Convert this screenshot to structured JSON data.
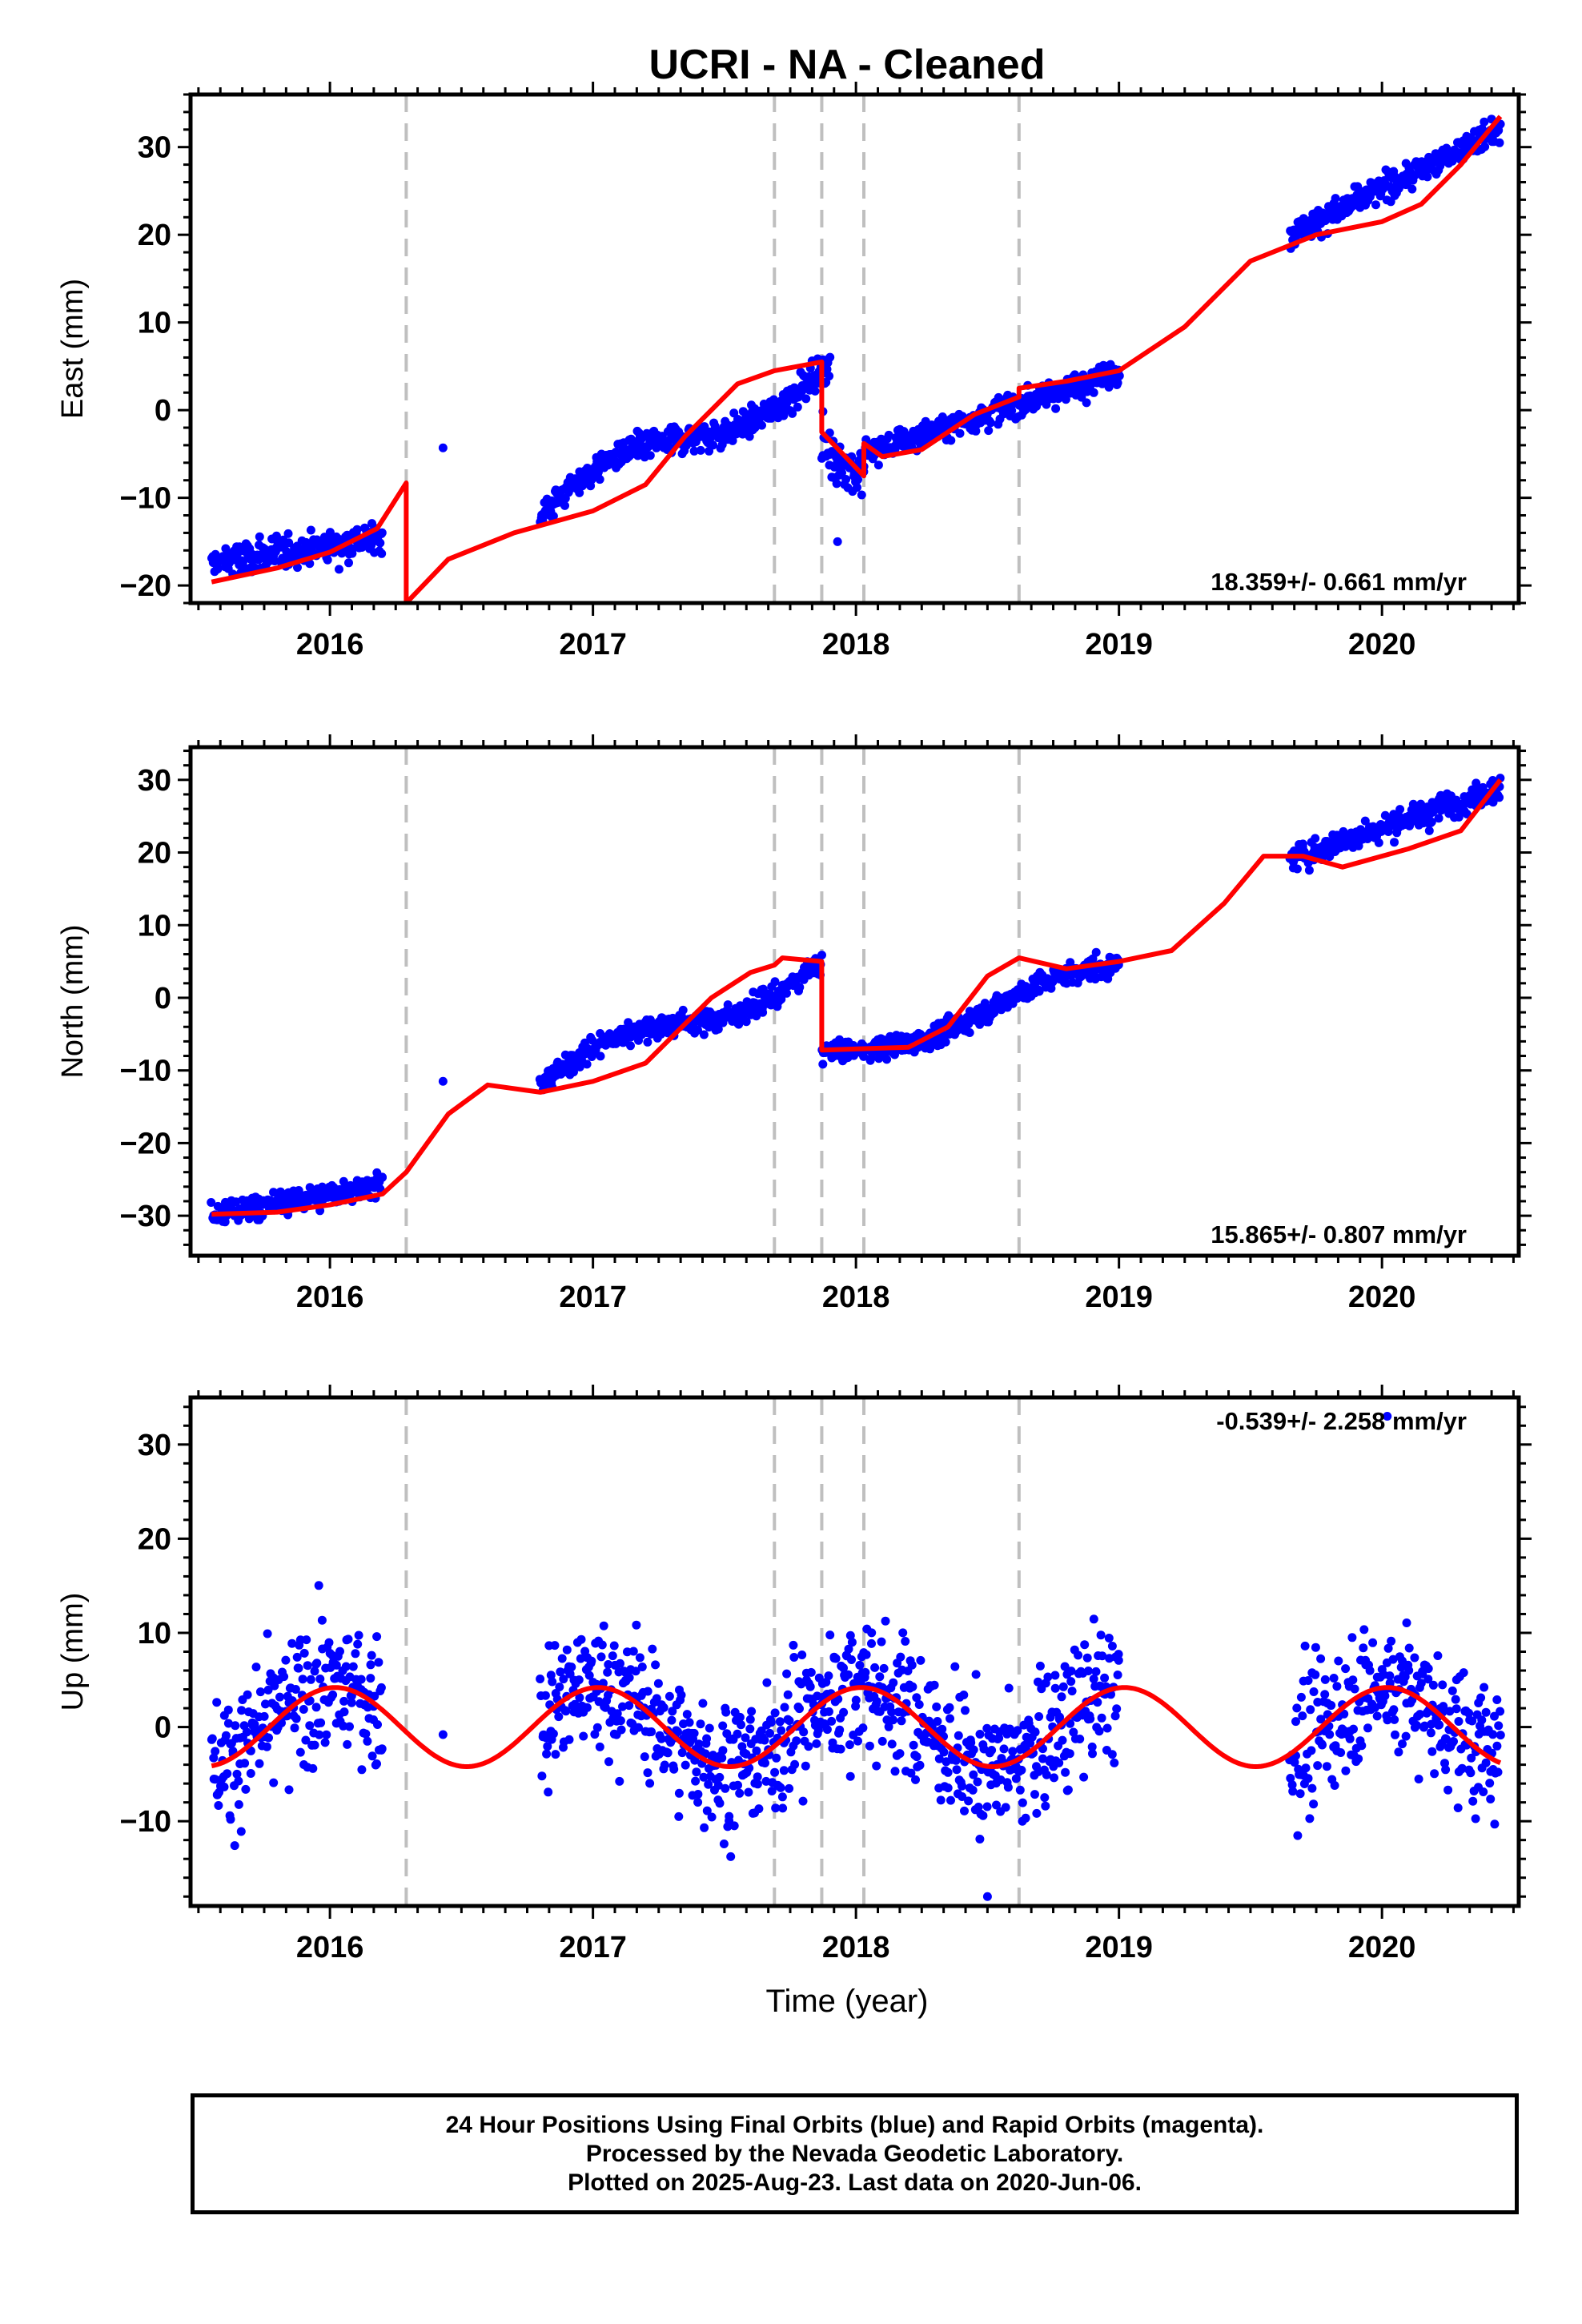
{
  "title": "UCRI  - NA - Cleaned",
  "x_axis_label": "Time (year)",
  "footer": {
    "line1": "24 Hour Positions Using Final Orbits (blue) and Rapid Orbits (magenta).",
    "line2": "Processed by the Nevada Geodetic Laboratory.",
    "line3": "Plotted on 2025-Aug-23. Last data on 2020-Jun-06."
  },
  "colors": {
    "data": "#0000ff",
    "model": "#ff0000",
    "break_lines": "#bfbfbf",
    "axes": "#000000"
  },
  "chart_data": [
    {
      "type": "scatter",
      "ylabel": "East (mm)",
      "rate_label": "18.359+/- 0.661 mm/yr",
      "xlim": [
        2015.47,
        2020.52
      ],
      "ylim": [
        -22,
        36
      ],
      "x_ticks": [
        2016,
        2017,
        2018,
        2019,
        2020
      ],
      "y_ticks": [
        -20,
        -10,
        0,
        10,
        20,
        30
      ],
      "grid": false,
      "equipment_breaks": [
        2016.29,
        2017.69,
        2017.87,
        2018.03,
        2018.62
      ],
      "data_segments": [
        {
          "x": [
            2015.55,
            2016.2
          ],
          "y": [
            -17.5,
            -14.5
          ],
          "noise": 1.6
        },
        {
          "x": [
            2016.8,
            2017.9
          ],
          "y": [
            -12,
            5.5
          ],
          "shape": "s",
          "noise": 1.4
        },
        {
          "x": [
            2017.87,
            2018.03
          ],
          "y": [
            -4,
            -8
          ],
          "noise": 2.5
        },
        {
          "x": [
            2018.03,
            2019.0
          ],
          "y": [
            -5,
            4.5
          ],
          "noise": 1.3
        },
        {
          "x": [
            2019.65,
            2020.45
          ],
          "y": [
            20,
            32
          ],
          "noise": 1.3
        }
      ],
      "outliers": [
        {
          "x": 2016.43,
          "y": -4.3
        },
        {
          "x": 2017.93,
          "y": -15
        }
      ],
      "model_line": [
        [
          2015.55,
          -19.6
        ],
        [
          2015.8,
          -18
        ],
        [
          2016.0,
          -16.2
        ],
        [
          2016.18,
          -13.5
        ],
        [
          2016.29,
          -8.3
        ],
        [
          2016.29,
          -22
        ],
        [
          2016.45,
          -17
        ],
        [
          2016.7,
          -14
        ],
        [
          2017.0,
          -11.5
        ],
        [
          2017.2,
          -8.5
        ],
        [
          2017.35,
          -3
        ],
        [
          2017.55,
          3
        ],
        [
          2017.69,
          4.5
        ],
        [
          2017.87,
          5.5
        ],
        [
          2017.87,
          -2.5
        ],
        [
          2017.95,
          -5
        ],
        [
          2018.03,
          -7.5
        ],
        [
          2018.03,
          -3.8
        ],
        [
          2018.1,
          -5.3
        ],
        [
          2018.25,
          -4.5
        ],
        [
          2018.45,
          -0.5
        ],
        [
          2018.62,
          1.5
        ],
        [
          2018.62,
          2.5
        ],
        [
          2018.8,
          3.3
        ],
        [
          2019.0,
          4.5
        ],
        [
          2019.25,
          9.5
        ],
        [
          2019.5,
          17
        ],
        [
          2019.75,
          20
        ],
        [
          2020.0,
          21.5
        ],
        [
          2020.15,
          23.5
        ],
        [
          2020.3,
          28
        ],
        [
          2020.45,
          33.5
        ]
      ]
    },
    {
      "type": "scatter",
      "ylabel": "North (mm)",
      "rate_label": "15.865+/- 0.807 mm/yr",
      "xlim": [
        2015.47,
        2020.52
      ],
      "ylim": [
        -35.5,
        34.5
      ],
      "x_ticks": [
        2016,
        2017,
        2018,
        2019,
        2020
      ],
      "y_ticks": [
        -30,
        -20,
        -10,
        0,
        10,
        20,
        30
      ],
      "grid": false,
      "equipment_breaks": [
        2016.29,
        2017.69,
        2017.87,
        2018.03,
        2018.62
      ],
      "data_segments": [
        {
          "x": [
            2015.55,
            2016.2
          ],
          "y": [
            -30,
            -25.5
          ],
          "noise": 1.4
        },
        {
          "x": [
            2016.8,
            2017.87
          ],
          "y": [
            -12,
            5
          ],
          "shape": "s",
          "noise": 1.3
        },
        {
          "x": [
            2017.87,
            2018.03
          ],
          "y": [
            -7.5,
            -7.2
          ],
          "noise": 1.3
        },
        {
          "x": [
            2018.05,
            2019.0
          ],
          "y": [
            -7,
            4.5
          ],
          "shape": "s2",
          "noise": 1.3
        },
        {
          "x": [
            2019.65,
            2020.45
          ],
          "y": [
            19,
            29
          ],
          "noise": 1.5
        }
      ],
      "outliers": [
        {
          "x": 2016.43,
          "y": -11.5
        }
      ],
      "model_line": [
        [
          2015.55,
          -29.8
        ],
        [
          2015.8,
          -29.5
        ],
        [
          2016.0,
          -28.5
        ],
        [
          2016.2,
          -27
        ],
        [
          2016.29,
          -24
        ],
        [
          2016.45,
          -16
        ],
        [
          2016.6,
          -12
        ],
        [
          2016.8,
          -13
        ],
        [
          2017.0,
          -11.5
        ],
        [
          2017.2,
          -9
        ],
        [
          2017.45,
          0
        ],
        [
          2017.6,
          3.5
        ],
        [
          2017.69,
          4.5
        ],
        [
          2017.72,
          5.5
        ],
        [
          2017.87,
          5
        ],
        [
          2017.87,
          -7.2
        ],
        [
          2018.03,
          -7
        ],
        [
          2018.2,
          -6.8
        ],
        [
          2018.35,
          -4
        ],
        [
          2018.5,
          3
        ],
        [
          2018.62,
          5.5
        ],
        [
          2018.8,
          4
        ],
        [
          2019.0,
          5
        ],
        [
          2019.2,
          6.5
        ],
        [
          2019.4,
          13
        ],
        [
          2019.55,
          19.5
        ],
        [
          2019.7,
          19.5
        ],
        [
          2019.85,
          18
        ],
        [
          2020.1,
          20.5
        ],
        [
          2020.3,
          23
        ],
        [
          2020.45,
          30
        ]
      ]
    },
    {
      "type": "scatter",
      "ylabel": "Up (mm)",
      "rate_label": "-0.539+/- 2.258 mm/yr",
      "xlim": [
        2015.47,
        2020.52
      ],
      "ylim": [
        -19,
        35
      ],
      "x_ticks": [
        2016,
        2017,
        2018,
        2019,
        2020
      ],
      "y_ticks": [
        -10,
        0,
        10,
        20,
        30
      ],
      "grid": false,
      "equipment_breaks": [
        2016.29,
        2017.69,
        2017.87,
        2018.03,
        2018.62
      ],
      "data_segments": [
        {
          "x": [
            2015.55,
            2016.2
          ],
          "seasonal": true,
          "noise": 6
        },
        {
          "x": [
            2016.8,
            2019.0
          ],
          "seasonal": true,
          "noise": 6
        },
        {
          "x": [
            2019.65,
            2020.45
          ],
          "seasonal": true,
          "noise": 6
        }
      ],
      "outliers": [
        {
          "x": 2016.43,
          "y": -0.8
        },
        {
          "x": 2020.02,
          "y": 33
        },
        {
          "x": 2018.5,
          "y": -18
        }
      ],
      "model_line": "seasonal"
    }
  ]
}
